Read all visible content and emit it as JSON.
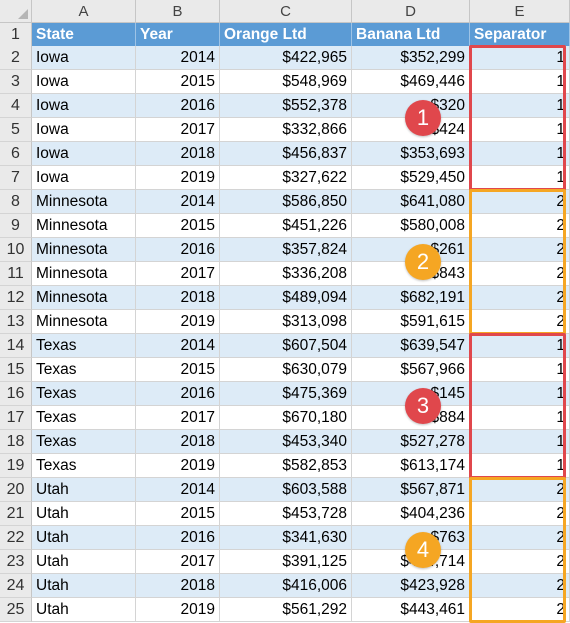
{
  "columns": [
    "A",
    "B",
    "C",
    "D",
    "E"
  ],
  "header": [
    "State",
    "Year",
    "Orange Ltd",
    "Banana Ltd",
    "Separator"
  ],
  "rows": [
    [
      "Iowa",
      "2014",
      "$422,965",
      "$352,299",
      "1"
    ],
    [
      "Iowa",
      "2015",
      "$548,969",
      "$469,446",
      "1"
    ],
    [
      "Iowa",
      "2016",
      "$552,378",
      "$",
      "1"
    ],
    [
      "Iowa",
      "2017",
      "$332,866",
      "$",
      "1"
    ],
    [
      "Iowa",
      "2018",
      "$456,837",
      "$353,693",
      "1"
    ],
    [
      "Iowa",
      "2019",
      "$327,622",
      "$529,450",
      "1"
    ],
    [
      "Minnesota",
      "2014",
      "$586,850",
      "$641,080",
      "2"
    ],
    [
      "Minnesota",
      "2015",
      "$451,226",
      "$580,008",
      "2"
    ],
    [
      "Minnesota",
      "2016",
      "$357,824",
      "$",
      "2"
    ],
    [
      "Minnesota",
      "2017",
      "$336,208",
      "$",
      "2"
    ],
    [
      "Minnesota",
      "2018",
      "$489,094",
      "$682,191",
      "2"
    ],
    [
      "Minnesota",
      "2019",
      "$313,098",
      "$591,615",
      "2"
    ],
    [
      "Texas",
      "2014",
      "$607,504",
      "$639,547",
      "1"
    ],
    [
      "Texas",
      "2015",
      "$630,079",
      "$567,966",
      "1"
    ],
    [
      "Texas",
      "2016",
      "$475,369",
      "$",
      "1"
    ],
    [
      "Texas",
      "2017",
      "$670,180",
      "$",
      "1"
    ],
    [
      "Texas",
      "2018",
      "$453,340",
      "$527,278",
      "1"
    ],
    [
      "Texas",
      "2019",
      "$582,853",
      "$613,174",
      "1"
    ],
    [
      "Utah",
      "2014",
      "$603,588",
      "$567,871",
      "2"
    ],
    [
      "Utah",
      "2015",
      "$453,728",
      "$404,236",
      "2"
    ],
    [
      "Utah",
      "2016",
      "$341,630",
      "$",
      "2"
    ],
    [
      "Utah",
      "2017",
      "$391,125",
      "$494,714",
      "2"
    ],
    [
      "Utah",
      "2018",
      "$416,006",
      "$423,928",
      "2"
    ],
    [
      "Utah",
      "2019",
      "$561,292",
      "$443,461",
      "2"
    ]
  ],
  "hidden_suffixes": [
    "320",
    "424",
    "261",
    "843",
    "145",
    "884",
    "763"
  ],
  "badges": [
    "1",
    "2",
    "3",
    "4"
  ],
  "colors": {
    "header_fill": "#5b9bd5",
    "band_fill": "#ddebf7",
    "red": "#e0474c",
    "orange": "#f5a623"
  }
}
